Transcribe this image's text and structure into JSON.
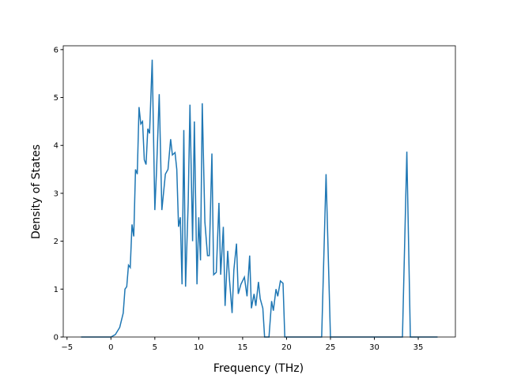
{
  "chart_data": {
    "type": "line",
    "x_label": "Frequency (THz)",
    "y_label": "Density of States",
    "xlim": [
      -5.43,
      39.23
    ],
    "ylim": [
      0,
      6.08
    ],
    "xticks": [
      {
        "value": -5,
        "label": "−5"
      },
      0,
      5,
      10,
      15,
      20,
      25,
      30,
      35
    ],
    "yticks": [
      0,
      1,
      2,
      3,
      4,
      5,
      6
    ],
    "series": [
      {
        "color": "#1f77b4",
        "x": [
          -3.4,
          0,
          0.5,
          1,
          1.4,
          1.6,
          1.8,
          2.0,
          2.2,
          2.4,
          2.6,
          2.8,
          3.0,
          3.2,
          3.4,
          3.6,
          3.8,
          4.0,
          4.2,
          4.4,
          4.7,
          5.0,
          5.2,
          5.5,
          5.8,
          6.2,
          6.5,
          6.8,
          7.0,
          7.3,
          7.5,
          7.7,
          7.9,
          8.1,
          8.3,
          8.5,
          8.8,
          9.0,
          9.3,
          9.5,
          9.8,
          10.0,
          10.2,
          10.4,
          10.7,
          11.0,
          11.2,
          11.5,
          11.7,
          12.0,
          12.3,
          12.5,
          12.8,
          13.0,
          13.3,
          13.5,
          13.8,
          14.0,
          14.3,
          14.5,
          14.8,
          15.2,
          15.5,
          15.8,
          16.0,
          16.3,
          16.5,
          16.8,
          17.0,
          17.3,
          17.5,
          18.0,
          18.3,
          18.5,
          18.8,
          19.0,
          19.3,
          19.6,
          19.8,
          24.0,
          24.5,
          25.0,
          33.2,
          33.7,
          34.1,
          37.2
        ],
        "values": [
          0,
          0,
          0.05,
          0.2,
          0.5,
          1.0,
          1.05,
          1.5,
          1.45,
          2.35,
          2.1,
          3.5,
          3.4,
          4.8,
          4.45,
          4.5,
          3.7,
          3.6,
          4.35,
          4.25,
          5.79,
          2.65,
          3.5,
          5.07,
          2.65,
          3.4,
          3.5,
          4.13,
          3.8,
          3.85,
          3.5,
          2.3,
          2.5,
          1.1,
          4.32,
          1.05,
          2.8,
          4.85,
          2.0,
          4.5,
          1.1,
          2.5,
          1.6,
          4.88,
          2.4,
          1.7,
          1.7,
          3.83,
          1.3,
          1.35,
          2.8,
          1.3,
          2.3,
          0.65,
          1.8,
          1.2,
          0.5,
          1.4,
          1.95,
          0.9,
          1.1,
          1.25,
          0.85,
          1.7,
          0.6,
          0.9,
          0.65,
          1.15,
          0.8,
          0.6,
          0,
          0,
          0.75,
          0.55,
          1.0,
          0.85,
          1.17,
          1.12,
          0,
          0,
          3.4,
          0,
          0,
          3.87,
          0,
          0
        ]
      }
    ]
  }
}
